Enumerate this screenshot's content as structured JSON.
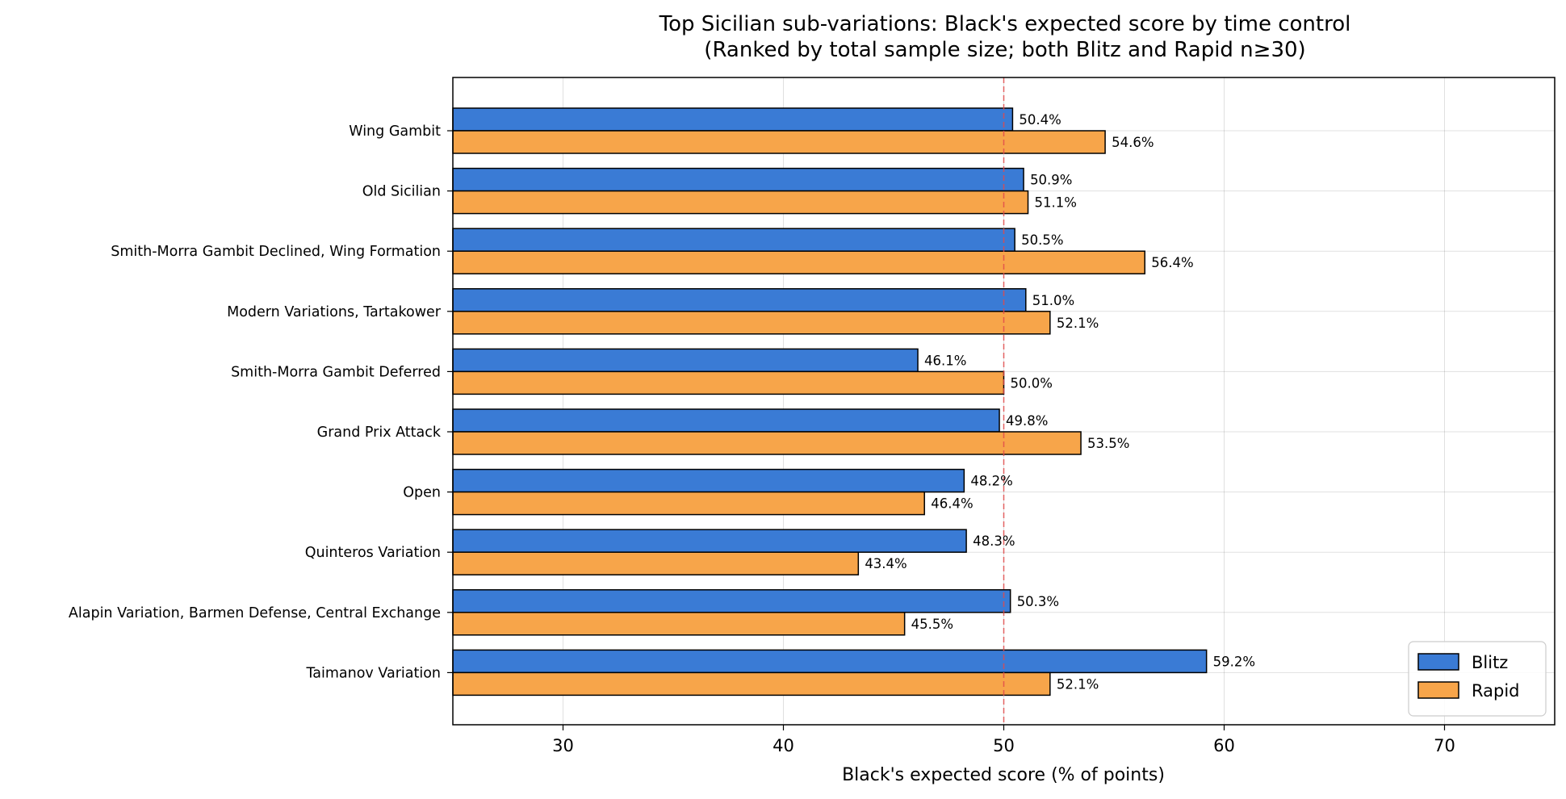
{
  "chart_data": {
    "type": "bar",
    "orientation": "horizontal",
    "title": "Top Sicilian sub-variations: Black's expected score by time control",
    "subtitle": "(Ranked by total sample size; both Blitz and Rapid n≥30)",
    "xlabel": "Black's expected score (% of points)",
    "ylabel": "",
    "xlim": [
      25,
      75
    ],
    "xticks": [
      30,
      40,
      50,
      60,
      70
    ],
    "grid": true,
    "reference_line": {
      "x": 50,
      "color": "#e24a4a",
      "style": "dashed"
    },
    "legend_position": "bottom-right",
    "categories": [
      "Wing Gambit",
      "Old Sicilian",
      "Smith-Morra Gambit Declined, Wing Formation",
      "Modern Variations, Tartakower",
      "Smith-Morra Gambit Deferred",
      "Grand Prix Attack",
      "Open",
      "Quinteros Variation",
      "Alapin Variation, Barmen Defense, Central Exchange",
      "Taimanov Variation"
    ],
    "series": [
      {
        "name": "Blitz",
        "color": "#3a7bd5",
        "values": [
          50.4,
          50.9,
          50.5,
          51.0,
          46.1,
          49.8,
          48.2,
          48.3,
          50.3,
          59.2
        ],
        "labels": [
          "50.4%",
          "50.9%",
          "50.5%",
          "51.0%",
          "46.1%",
          "49.8%",
          "48.2%",
          "48.3%",
          "50.3%",
          "59.2%"
        ]
      },
      {
        "name": "Rapid",
        "color": "#f7a54a",
        "values": [
          54.6,
          51.1,
          56.4,
          52.1,
          50.0,
          53.5,
          46.4,
          43.4,
          45.5,
          52.1
        ],
        "labels": [
          "54.6%",
          "51.1%",
          "56.4%",
          "52.1%",
          "50.0%",
          "53.5%",
          "46.4%",
          "43.4%",
          "45.5%",
          "52.1%"
        ]
      }
    ]
  }
}
